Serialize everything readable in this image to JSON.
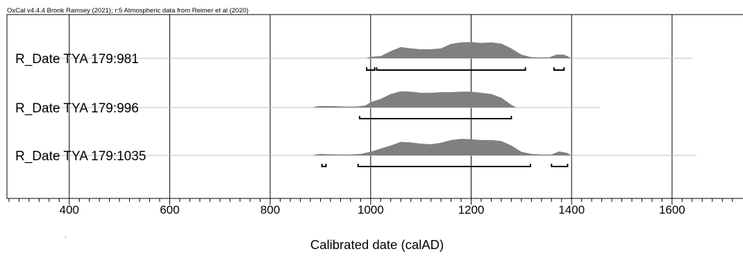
{
  "chart_data": {
    "type": "area",
    "header": "OxCal v4.4.4 Bronk Ramsey (2021); r:5 Atmospheric data from Reimer et al (2020)",
    "xlabel": "Calibrated date (calAD)",
    "xlim": [
      276,
      1755
    ],
    "xticks": [
      400,
      600,
      800,
      1000,
      1200,
      1400,
      1600
    ],
    "minor_tick_step": 20,
    "grid": true,
    "colors": {
      "fill": "#808080",
      "axis": "#000000",
      "range_line": "#bcbcbc",
      "background": "#ffffff"
    },
    "series": [
      {
        "label": "R_Date TYA 179:981",
        "range_line": [
          333,
          1640
        ],
        "density": [
          [
            990,
            0
          ],
          [
            1000,
            0.08
          ],
          [
            1020,
            0.12
          ],
          [
            1040,
            0.4
          ],
          [
            1060,
            0.62
          ],
          [
            1080,
            0.55
          ],
          [
            1100,
            0.5
          ],
          [
            1120,
            0.5
          ],
          [
            1140,
            0.55
          ],
          [
            1160,
            0.8
          ],
          [
            1180,
            0.88
          ],
          [
            1200,
            0.9
          ],
          [
            1220,
            0.85
          ],
          [
            1240,
            0.88
          ],
          [
            1260,
            0.82
          ],
          [
            1280,
            0.55
          ],
          [
            1300,
            0.2
          ],
          [
            1320,
            0.06
          ],
          [
            1340,
            0.05
          ],
          [
            1355,
            0.05
          ],
          [
            1370,
            0.2
          ],
          [
            1385,
            0.2
          ],
          [
            1400,
            0
          ]
        ],
        "ranges": [
          [
            992,
            1008
          ],
          [
            1012,
            1308
          ],
          [
            1365,
            1385
          ]
        ]
      },
      {
        "label": "R_Date TYA 179:996",
        "range_line": [
          333,
          1455
        ],
        "density": [
          [
            885,
            0
          ],
          [
            890,
            0.05
          ],
          [
            900,
            0.08
          ],
          [
            920,
            0.08
          ],
          [
            940,
            0.06
          ],
          [
            960,
            0.05
          ],
          [
            975,
            0.06
          ],
          [
            990,
            0.12
          ],
          [
            1000,
            0.3
          ],
          [
            1020,
            0.48
          ],
          [
            1040,
            0.75
          ],
          [
            1060,
            0.9
          ],
          [
            1080,
            0.88
          ],
          [
            1100,
            0.82
          ],
          [
            1120,
            0.82
          ],
          [
            1140,
            0.85
          ],
          [
            1160,
            0.85
          ],
          [
            1180,
            0.88
          ],
          [
            1200,
            0.88
          ],
          [
            1220,
            0.82
          ],
          [
            1240,
            0.75
          ],
          [
            1260,
            0.55
          ],
          [
            1280,
            0.15
          ],
          [
            1290,
            0
          ]
        ],
        "ranges": [
          [
            978,
            1280
          ]
        ]
      },
      {
        "label": "R_Date TYA 179:1035",
        "range_line": [
          333,
          1648
        ],
        "density": [
          [
            885,
            0
          ],
          [
            890,
            0.05
          ],
          [
            900,
            0.08
          ],
          [
            920,
            0.06
          ],
          [
            940,
            0.05
          ],
          [
            960,
            0.05
          ],
          [
            980,
            0.08
          ],
          [
            1000,
            0.2
          ],
          [
            1020,
            0.38
          ],
          [
            1040,
            0.55
          ],
          [
            1060,
            0.75
          ],
          [
            1080,
            0.72
          ],
          [
            1100,
            0.65
          ],
          [
            1120,
            0.62
          ],
          [
            1140,
            0.7
          ],
          [
            1160,
            0.85
          ],
          [
            1180,
            0.92
          ],
          [
            1200,
            0.9
          ],
          [
            1220,
            0.85
          ],
          [
            1240,
            0.85
          ],
          [
            1260,
            0.8
          ],
          [
            1280,
            0.55
          ],
          [
            1300,
            0.2
          ],
          [
            1320,
            0.08
          ],
          [
            1340,
            0.05
          ],
          [
            1360,
            0.05
          ],
          [
            1375,
            0.22
          ],
          [
            1390,
            0.15
          ],
          [
            1400,
            0
          ]
        ],
        "ranges": [
          [
            903,
            911
          ],
          [
            975,
            1318
          ],
          [
            1360,
            1392
          ]
        ]
      }
    ]
  }
}
